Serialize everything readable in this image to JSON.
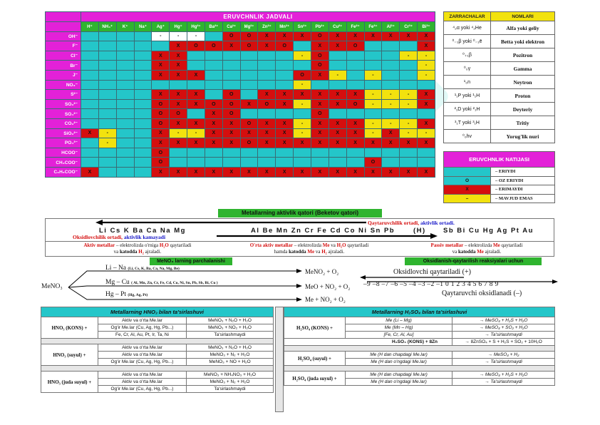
{
  "solubility": {
    "title": "ERUVCHNLIK JADVALI",
    "cations": [
      "H⁺",
      "NH₄⁺",
      "K⁺",
      "Na⁺",
      "Ag⁺",
      "Hg⁺",
      "Hg²⁺",
      "Ba²⁺",
      "Ca²⁺",
      "Mg²⁺",
      "Zn²⁺",
      "Mn²⁺",
      "Sn²⁺",
      "Pb²⁺",
      "Cu²⁺",
      "Fe²⁺",
      "Fe³⁺",
      "Al³⁺",
      "Cr³⁺",
      "Bi³⁺"
    ],
    "rows": [
      {
        "anion": "OH⁻",
        "cells": [
          "R",
          "R",
          "R",
          "R",
          "-",
          "-",
          "-",
          "R",
          "O",
          "O",
          "X",
          "X",
          "X",
          "O",
          "X",
          "X",
          "X",
          "X",
          "X",
          "X"
        ],
        "text": [
          "",
          "",
          "",
          "",
          "-",
          "-",
          "-",
          "",
          "O",
          "O",
          "X",
          "X",
          "X",
          "O",
          "X",
          "X",
          "X",
          "X",
          "X",
          "X"
        ]
      },
      {
        "anion": "F⁻",
        "cells": [
          "R",
          "R",
          "R",
          "R",
          "R",
          "X",
          "O",
          "O",
          "X",
          "O",
          "X",
          "O",
          "R",
          "X",
          "X",
          "O",
          "R",
          "R",
          "R",
          "X"
        ],
        "text": [
          "",
          "",
          "",
          "",
          "",
          "X",
          "O",
          "O",
          "X",
          "O",
          "X",
          "O",
          "",
          "X",
          "X",
          "O",
          "",
          "",
          "",
          "X"
        ]
      },
      {
        "anion": "Cl⁻",
        "cells": [
          "R",
          "R",
          "R",
          "R",
          "X",
          "X",
          "R",
          "R",
          "R",
          "R",
          "R",
          "R",
          "Y",
          "O",
          "R",
          "R",
          "R",
          "R",
          "Y",
          "Y"
        ],
        "text": [
          "",
          "",
          "",
          "",
          "X",
          "X",
          "",
          "",
          "",
          "",
          "",
          "",
          "-",
          "O",
          "",
          "",
          "",
          "",
          "-",
          "-"
        ]
      },
      {
        "anion": "Br⁻",
        "cells": [
          "R",
          "R",
          "R",
          "R",
          "X",
          "X",
          "R",
          "R",
          "R",
          "R",
          "R",
          "R",
          "R",
          "O",
          "R",
          "R",
          "R",
          "R",
          "R",
          "Y"
        ],
        "text": [
          "",
          "",
          "",
          "",
          "X",
          "X",
          "",
          "",
          "",
          "",
          "",
          "",
          "",
          "O",
          "",
          "",
          "",
          "",
          "",
          "-"
        ]
      },
      {
        "anion": "J⁻",
        "cells": [
          "R",
          "R",
          "R",
          "R",
          "X",
          "X",
          "X",
          "R",
          "R",
          "R",
          "R",
          "R",
          "O",
          "X",
          "Y",
          "R",
          "Y",
          "R",
          "R",
          "Y"
        ],
        "text": [
          "",
          "",
          "",
          "",
          "X",
          "X",
          "X",
          "",
          "",
          "",
          "",
          "",
          "O",
          "X",
          "-",
          "",
          "-",
          "",
          "",
          "-"
        ]
      },
      {
        "anion": "NO₃⁻",
        "cells": [
          "R",
          "R",
          "R",
          "R",
          "R",
          "R",
          "R",
          "R",
          "R",
          "R",
          "R",
          "R",
          "Y",
          "R",
          "R",
          "R",
          "R",
          "R",
          "R",
          "R"
        ],
        "text": [
          "",
          "",
          "",
          "",
          "",
          "",
          "",
          "",
          "",
          "",
          "",
          "",
          "-",
          "",
          "",
          "",
          "",
          "",
          "",
          ""
        ]
      },
      {
        "anion": "S²⁻",
        "cells": [
          "R",
          "R",
          "R",
          "R",
          "X",
          "X",
          "X",
          "R",
          "O",
          "R",
          "X",
          "X",
          "X",
          "X",
          "X",
          "X",
          "Y",
          "Y",
          "Y",
          "X"
        ],
        "text": [
          "",
          "",
          "",
          "",
          "X",
          "X",
          "X",
          "",
          "O",
          "",
          "X",
          "X",
          "X",
          "X",
          "X",
          "X",
          "-",
          "-",
          "-",
          "X"
        ]
      },
      {
        "anion": "SO₃²⁻",
        "cells": [
          "R",
          "R",
          "R",
          "R",
          "O",
          "X",
          "X",
          "O",
          "O",
          "X",
          "O",
          "X",
          "Y",
          "X",
          "X",
          "O",
          "Y",
          "Y",
          "Y",
          "X"
        ],
        "text": [
          "",
          "",
          "",
          "",
          "O",
          "X",
          "X",
          "O",
          "O",
          "X",
          "O",
          "X",
          "-",
          "X",
          "X",
          "O",
          "-",
          "-",
          "-",
          "X"
        ]
      },
      {
        "anion": "SO₄²⁻",
        "cells": [
          "R",
          "R",
          "R",
          "R",
          "O",
          "O",
          "R",
          "X",
          "O",
          "R",
          "R",
          "R",
          "R",
          "O",
          "R",
          "R",
          "R",
          "R",
          "R",
          "R"
        ],
        "text": [
          "",
          "",
          "",
          "",
          "O",
          "O",
          "",
          "X",
          "O",
          "",
          "",
          "",
          "",
          "O",
          "",
          "",
          "",
          "",
          "",
          ""
        ]
      },
      {
        "anion": "CO₃²⁻",
        "cells": [
          "R",
          "R",
          "R",
          "R",
          "O",
          "X",
          "X",
          "X",
          "X",
          "O",
          "X",
          "X",
          "Y",
          "X",
          "X",
          "X",
          "Y",
          "Y",
          "Y",
          "X"
        ],
        "text": [
          "",
          "",
          "",
          "",
          "O",
          "X",
          "X",
          "X",
          "X",
          "O",
          "X",
          "X",
          "-",
          "X",
          "X",
          "X",
          "-",
          "-",
          "-",
          "X"
        ]
      },
      {
        "anion": "SiO₃²⁻",
        "cells": [
          "X",
          "Y",
          "R",
          "R",
          "X",
          "Y",
          "Y",
          "X",
          "X",
          "X",
          "X",
          "X",
          "Y",
          "X",
          "X",
          "X",
          "Y",
          "X",
          "Y",
          "Y"
        ],
        "text": [
          "X",
          "-",
          "",
          "",
          "X",
          "-",
          "-",
          "X",
          "X",
          "X",
          "X",
          "X",
          "-",
          "X",
          "X",
          "X",
          "-",
          "X",
          "-",
          "-"
        ]
      },
      {
        "anion": "PO₄³⁻",
        "cells": [
          "R",
          "Y",
          "R",
          "R",
          "X",
          "X",
          "X",
          "X",
          "X",
          "O",
          "X",
          "X",
          "X",
          "X",
          "X",
          "X",
          "X",
          "X",
          "X",
          "X"
        ],
        "text": [
          "",
          "-",
          "",
          "",
          "X",
          "X",
          "X",
          "X",
          "X",
          "O",
          "X",
          "X",
          "X",
          "X",
          "X",
          "X",
          "X",
          "X",
          "X",
          "X"
        ]
      },
      {
        "anion": "HCOO⁻",
        "cells": [
          "R",
          "R",
          "R",
          "R",
          "O",
          "R",
          "R",
          "R",
          "R",
          "R",
          "R",
          "R",
          "R",
          "R",
          "R",
          "R",
          "R",
          "R",
          "R",
          "R"
        ],
        "text": [
          "",
          "",
          "",
          "",
          "O",
          "",
          "",
          "",
          "",
          "",
          "",
          "",
          "",
          "",
          "",
          "",
          "",
          "",
          "",
          ""
        ]
      },
      {
        "anion": "CH₃COO⁻",
        "cells": [
          "R",
          "R",
          "R",
          "R",
          "O",
          "R",
          "R",
          "R",
          "R",
          "R",
          "R",
          "R",
          "R",
          "R",
          "R",
          "R",
          "O",
          "R",
          "R",
          "R"
        ],
        "text": [
          "",
          "",
          "",
          "",
          "O",
          "",
          "",
          "",
          "",
          "",
          "",
          "",
          "",
          "",
          "",
          "",
          "O",
          "",
          "",
          ""
        ]
      },
      {
        "anion": "C₆H₅COO⁻",
        "cells": [
          "X",
          "R",
          "R",
          "R",
          "X",
          "X",
          "X",
          "X",
          "X",
          "X",
          "X",
          "X",
          "X",
          "X",
          "X",
          "X",
          "X",
          "X",
          "X",
          "X"
        ],
        "text": [
          "X",
          "",
          "",
          "",
          "X",
          "X",
          "X",
          "X",
          "X",
          "X",
          "X",
          "X",
          "X",
          "X",
          "X",
          "X",
          "X",
          "X",
          "X",
          "X"
        ]
      }
    ]
  },
  "particles": {
    "header": [
      "ZARRACHALAR",
      "NOMLARI"
    ],
    "rows": [
      {
        "sym": "⁴₂α yoki ⁴₂He",
        "name": "Alfa yoki geliy"
      },
      {
        "sym": "⁰₋₁β yoki ⁰₋₁ē",
        "name": "Betta yoki elektron"
      },
      {
        "sym": "⁰₊₁β",
        "name": "Pozitron"
      },
      {
        "sym": "⁰₀γ",
        "name": "Gamma"
      },
      {
        "sym": "¹₀n",
        "name": "Neytron"
      },
      {
        "sym": "¹₁P yoki ¹₁H",
        "name": "Proton"
      },
      {
        "sym": "²₁D yoki ²₁H",
        "name": "Deyteriy"
      },
      {
        "sym": "³₁T yoki ³₁H",
        "name": "Tritiy"
      },
      {
        "sym": "⁰₀hv",
        "name": "Yorug'lik nuri"
      }
    ]
  },
  "legend": {
    "title": "ERUVCHNLIK NATIJASI",
    "rows": [
      {
        "mark": "",
        "label": "– ERIYDI",
        "color": "#24c6c9"
      },
      {
        "mark": "O",
        "label": "– OZ ERIYDI",
        "color": "#24c6c9"
      },
      {
        "mark": "X",
        "label": "– ERIMAYDI",
        "color": "#d50e0e"
      },
      {
        "mark": "–",
        "label": "– MAVJUD EMAS",
        "color": "#f2e20e"
      }
    ]
  },
  "activity": {
    "title": "Metallarning aktivlik qatori (Beketov qatori)",
    "reducing": "Qaytaruvchilik ortadi,",
    "activity_up": "aktivlik ortadi.",
    "oxidizing": "Oksidlovchilik ortadi,",
    "activity_down": "aktivlik kamayadi",
    "metals_left": "Li  Cs  K  Ba  Ca  Na  Mg",
    "metals_right": "Al  Be  Mn  Zn  Cr  Fe  Cd  Co  Ni  Sn  Pb",
    "metals_h": "(H)",
    "metals_passive": "Sb  Bi  Cu  Hg  Ag  Pt  Au",
    "note1_a": "Aktiv metallar",
    "note1_b": " – elektrolizda o'rniga ",
    "note1_c": "H₂O",
    "note1_d": " qaytariladi",
    "note1_e": "va ",
    "note1_f": "katodda",
    "note1_g": " H₂",
    "note1_h": " ajraladi.",
    "note2_a": "O'rta aktiv metallar",
    "note2_b": " – elektrolizda ",
    "note2_c": "Me",
    "note2_d": " va ",
    "note2_e": "H₂O",
    "note2_f": " qaytariladi",
    "note2_g": "hamda ",
    "note2_h": "katodda",
    "note2_i": " Me",
    "note2_j": " va ",
    "note2_k": "H₂",
    "note2_l": " ajraladi.",
    "note3_a": "Passiv metallar",
    "note3_b": " – elektrolizda ",
    "note3_c": "Me",
    "note3_d": " qaytariladi",
    "note3_e": "va ",
    "note3_f": "katodda",
    "note3_g": " Me",
    "note3_h": " ajraladi."
  },
  "nitrate": {
    "title": "MeNO₃ larning parchalanishi",
    "root": "MeNO₃",
    "b1": "Li – Na",
    "b1_sub": "(Li, Cs, K, Ba, Ca, Na, Mg, Be)",
    "b1_prod": "MeNO₂ + O₂",
    "b2": "Mg – Cu",
    "b2_sub": "( Al, Mn, Zn, Cr, Fe, Cd, Co, Ni, Sn, Pb, Sb, Bi, Cu )",
    "b2_prod": "MeO + NO₂ + O₂",
    "b3": "Hg – Pt",
    "b3_sub": "(Hg, Ag, Pt)",
    "b3_prod": "Me + NO₂ + O₂"
  },
  "redox": {
    "title": "Oksidlanish-qaytarilish reaksiyalari uchun",
    "top": "Oksidlovchi qaytariladi (+)",
    "numbers": "–9 –8 –7 –6 –5 –4 –3 –2 –1  0  1  2  3  4  5  6  7  8  9",
    "bottom": "Qaytaruvchi oksidlanadi (–)"
  },
  "hno3": {
    "title": "Metallarning HNO₃ bilan ta'sirlashuvi",
    "groups": [
      {
        "acid": "HNO₃ (KONS) +",
        "rows": [
          [
            "Aktiv va o'rta Me.lar",
            "MeNO₃ + N₂O + H₂O"
          ],
          [
            "Og'ir Me.lar (Cu, Ag, Hg, Pb...)",
            "MeNO₃ + NO₂ + H₂O"
          ],
          [
            "Fe, Cr, Al, Au, Pt, Ir, Ta, Ni",
            "Ta'sirlashmaydi"
          ]
        ]
      },
      {
        "acid": "HNO₃ (suyul) +",
        "rows": [
          [
            "Aktiv va o'rta Me.lar",
            "MeNO₃ + N₂O + H₂O"
          ],
          [
            "Aktiv va o'rta Me.lar",
            "MeNO₃ + N₂ + H₂O"
          ],
          [
            "Og'ir Me.lar (Cu, Ag, Hg, Pb...)",
            "MeNO₃ + NO + H₂O"
          ]
        ]
      },
      {
        "acid": "HNO₃ (juda suyul) +",
        "rows": [
          [
            "Aktiv va o'rta Me.lar",
            "MeNO₃ + NH₄NO₃ + H₂O"
          ],
          [
            "Aktiv va o'rta Me.lar",
            "MeNO₃ + N₂ + H₂O"
          ],
          [
            "Og'ir Me.lar (Cu, Ag, Hg, Pb...)",
            "Ta'sirlashmaydi"
          ]
        ]
      }
    ]
  },
  "h2so4": {
    "title": "Metallarning H₂SO₄ bilan ta'sirlashuvi",
    "groups": [
      {
        "acid": "H₂SO₄ (KONS) +",
        "rows": [
          [
            "Me (Li – Mg)",
            "→ MeSO₄ + H₂S + H₂O"
          ],
          [
            "Me (Mn – Hg)",
            "→ MeSO₄ + SO₂ + H₂O"
          ],
          [
            "[Fe, Cr, Al, Au]",
            "→ Ta'sirlashmaydi"
          ]
        ],
        "extra": [
          "H₂SO₄ (KONS) + 8Zn",
          "→ 8ZnSO₄ + S + H₂S + SO₂ + 10H₂O"
        ]
      },
      {
        "acid": "H₂SO₄ (suyul) +",
        "rows": [
          [
            "Me (H dan chapdagi Me.lar)",
            "→ MeSO₄ + H₂"
          ],
          [
            "Me (H dan o'ngdagi Me.lar)",
            "→ Ta'sirlashmaydi"
          ]
        ]
      },
      {
        "acid": "H₂SO₄ (juda suyul) +",
        "rows": [
          [
            "Me (H dan chapdagi Me.lar)",
            "→ MeSO₄ + H₂S + H₂O"
          ],
          [
            "Me (H dan o'ngdagi Me.lar)",
            "→ Ta'sirlashmaydi"
          ]
        ]
      }
    ]
  }
}
